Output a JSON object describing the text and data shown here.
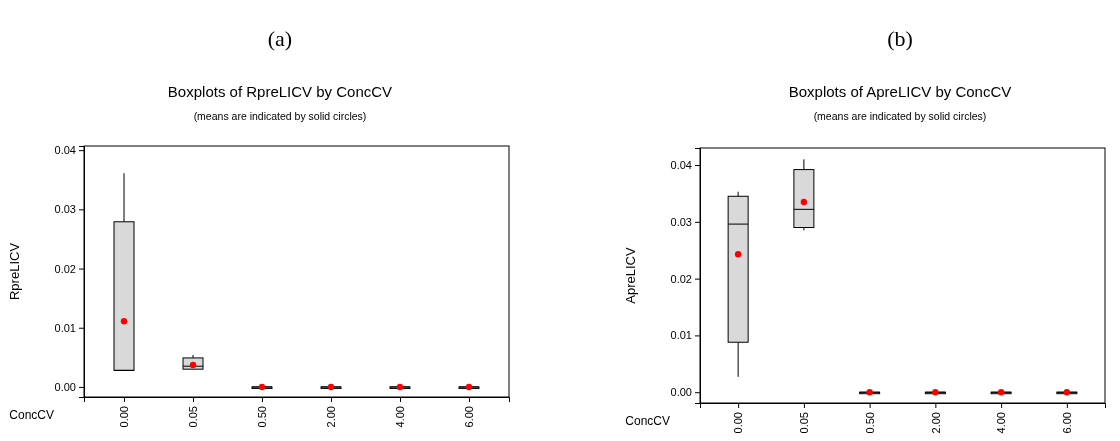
{
  "chart_data": [
    {
      "type": "box",
      "title": "Boxplots of RpreLICV by ConcCV",
      "subtitle": "(means are indicated by solid circles)",
      "xlabel": "ConcCV",
      "ylabel": "RpreLICV",
      "annotations": [
        "(a)"
      ],
      "categories": [
        "0.00",
        "0.05",
        "0.50",
        "2.00",
        "4.00",
        "6.00"
      ],
      "boxes": [
        {
          "low": 0.0028,
          "q1": 0.0028,
          "median": 0.0028,
          "q3": 0.0279,
          "high": 0.0361,
          "mean": 0.0111
        },
        {
          "low": 0.003,
          "q1": 0.003,
          "median": 0.0035,
          "q3": 0.0049,
          "high": 0.0054,
          "mean": 0.0037
        },
        {
          "low": 0,
          "q1": 0,
          "median": 0,
          "q3": 0,
          "high": 0,
          "mean": 0
        },
        {
          "low": 0,
          "q1": 0,
          "median": 0,
          "q3": 0,
          "high": 0,
          "mean": 0
        },
        {
          "low": 0,
          "q1": 0,
          "median": 0,
          "q3": 0,
          "high": 0,
          "mean": 0
        },
        {
          "low": 0,
          "q1": 0,
          "median": 0,
          "q3": 0,
          "high": 0,
          "mean": 0
        }
      ],
      "ylim": [
        -0.0017,
        0.0407
      ],
      "yticks": [
        {
          "value": 0,
          "label": "0.00"
        },
        {
          "value": 0.01,
          "label": "0.01"
        },
        {
          "value": 0.02,
          "label": "0.02"
        },
        {
          "value": 0.03,
          "label": "0.03"
        },
        {
          "value": 0.04,
          "label": "0.04"
        }
      ]
    },
    {
      "type": "box",
      "title": "Boxplots of ApreLICV by ConcCV",
      "subtitle": "(means are indicated by solid circles)",
      "xlabel": "ConcCV",
      "ylabel": "ApreLICV",
      "annotations": [
        "(b)"
      ],
      "categories": [
        "0.00",
        "0.05",
        "0.50",
        "2.00",
        "4.00",
        "6.00"
      ],
      "boxes": [
        {
          "low": 0.0027,
          "q1": 0.0088,
          "median": 0.0296,
          "q3": 0.0345,
          "high": 0.0353,
          "mean": 0.0243
        },
        {
          "low": 0.0285,
          "q1": 0.029,
          "median": 0.0322,
          "q3": 0.0392,
          "high": 0.041,
          "mean": 0.0335
        },
        {
          "low": 0,
          "q1": 0,
          "median": 0,
          "q3": 0,
          "high": 0,
          "mean": 0
        },
        {
          "low": 0,
          "q1": 0,
          "median": 0,
          "q3": 0,
          "high": 0,
          "mean": 0
        },
        {
          "low": 0,
          "q1": 0,
          "median": 0,
          "q3": 0,
          "high": 0,
          "mean": 0
        },
        {
          "low": 0,
          "q1": 0,
          "median": 0,
          "q3": 0,
          "high": 0,
          "mean": 0
        }
      ],
      "ylim": [
        -0.0019,
        0.043
      ],
      "yticks": [
        {
          "value": 0,
          "label": "0.00"
        },
        {
          "value": 0.01,
          "label": "0.01"
        },
        {
          "value": 0.02,
          "label": "0.02"
        },
        {
          "value": 0.03,
          "label": "0.03"
        },
        {
          "value": 0.04,
          "label": "0.04"
        }
      ]
    }
  ]
}
